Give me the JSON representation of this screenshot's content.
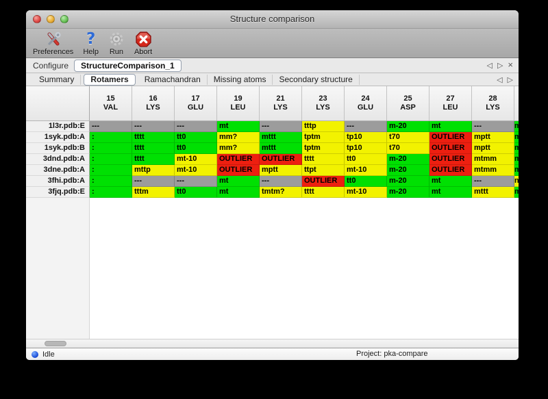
{
  "window": {
    "title": "Structure comparison"
  },
  "toolbar": {
    "buttons": [
      {
        "label": "Preferences",
        "icon": "tools-icon"
      },
      {
        "label": "Help",
        "icon": "question-icon"
      },
      {
        "label": "Run",
        "icon": "gear-icon"
      },
      {
        "label": "Abort",
        "icon": "abort-icon"
      }
    ]
  },
  "configure_bar": {
    "label": "Configure",
    "value": "StructureComparison_1",
    "nav": {
      "prev": "◁",
      "next": "▷",
      "close": "×"
    }
  },
  "tab_bar": {
    "tabs": [
      {
        "label": "Summary",
        "active": false
      },
      {
        "label": "Rotamers",
        "active": true
      },
      {
        "label": "Ramachandran",
        "active": false
      },
      {
        "label": "Missing atoms",
        "active": false
      },
      {
        "label": "Secondary structure",
        "active": false
      }
    ],
    "nav": {
      "prev": "◁",
      "next": "▷"
    }
  },
  "colors": {
    "ok": "#00e002",
    "warn": "#f2f200",
    "outlier": "#ed1f10",
    "missing": "#9c9c9c"
  },
  "table": {
    "columns": [
      {
        "num": "15",
        "res": "VAL"
      },
      {
        "num": "16",
        "res": "LYS"
      },
      {
        "num": "17",
        "res": "GLU"
      },
      {
        "num": "19",
        "res": "LEU"
      },
      {
        "num": "21",
        "res": "LYS"
      },
      {
        "num": "23",
        "res": "LYS"
      },
      {
        "num": "24",
        "res": "GLU"
      },
      {
        "num": "25",
        "res": "ASP"
      },
      {
        "num": "27",
        "res": "LEU"
      },
      {
        "num": "28",
        "res": "LYS"
      }
    ],
    "rows": [
      {
        "label": "1l3r.pdb:E",
        "cells": [
          {
            "text": "---",
            "status": "missing"
          },
          {
            "text": "---",
            "status": "missing"
          },
          {
            "text": "---",
            "status": "missing"
          },
          {
            "text": "mt",
            "status": "ok"
          },
          {
            "text": "---",
            "status": "missing"
          },
          {
            "text": "tttp",
            "status": "warn"
          },
          {
            "text": "---",
            "status": "missing"
          },
          {
            "text": "m-20",
            "status": "ok"
          },
          {
            "text": "mt",
            "status": "ok"
          },
          {
            "text": "---",
            "status": "missing"
          }
        ],
        "partial": {
          "text": "m",
          "status": "ok"
        }
      },
      {
        "label": "1syk.pdb:A",
        "cells": [
          {
            "text": ":",
            "status": "ok"
          },
          {
            "text": "tttt",
            "status": "ok"
          },
          {
            "text": "tt0",
            "status": "ok"
          },
          {
            "text": "mm?",
            "status": "warn"
          },
          {
            "text": "mttt",
            "status": "ok"
          },
          {
            "text": "tptm",
            "status": "warn"
          },
          {
            "text": "tp10",
            "status": "warn"
          },
          {
            "text": "t70",
            "status": "warn"
          },
          {
            "text": "OUTLIER",
            "status": "outlier"
          },
          {
            "text": "mptt",
            "status": "warn"
          }
        ],
        "partial": {
          "text": "m",
          "status": "ok"
        }
      },
      {
        "label": "1syk.pdb:B",
        "cells": [
          {
            "text": ":",
            "status": "ok"
          },
          {
            "text": "tttt",
            "status": "ok"
          },
          {
            "text": "tt0",
            "status": "ok"
          },
          {
            "text": "mm?",
            "status": "warn"
          },
          {
            "text": "mttt",
            "status": "ok"
          },
          {
            "text": "tptm",
            "status": "warn"
          },
          {
            "text": "tp10",
            "status": "warn"
          },
          {
            "text": "t70",
            "status": "warn"
          },
          {
            "text": "OUTLIER",
            "status": "outlier"
          },
          {
            "text": "mptt",
            "status": "warn"
          }
        ],
        "partial": {
          "text": "m",
          "status": "ok"
        }
      },
      {
        "label": "3dnd.pdb:A",
        "cells": [
          {
            "text": ":",
            "status": "ok"
          },
          {
            "text": "tttt",
            "status": "ok"
          },
          {
            "text": "mt-10",
            "status": "warn"
          },
          {
            "text": "OUTLIER",
            "status": "outlier"
          },
          {
            "text": "OUTLIER",
            "status": "outlier"
          },
          {
            "text": "tttt",
            "status": "warn"
          },
          {
            "text": "tt0",
            "status": "warn"
          },
          {
            "text": "m-20",
            "status": "ok"
          },
          {
            "text": "OUTLIER",
            "status": "outlier"
          },
          {
            "text": "mtmm",
            "status": "warn"
          }
        ],
        "partial": {
          "text": "m",
          "status": "ok"
        }
      },
      {
        "label": "3dne.pdb:A",
        "cells": [
          {
            "text": ":",
            "status": "ok"
          },
          {
            "text": "mttp",
            "status": "warn"
          },
          {
            "text": "mt-10",
            "status": "warn"
          },
          {
            "text": "OUTLIER",
            "status": "outlier"
          },
          {
            "text": "mptt",
            "status": "warn"
          },
          {
            "text": "ttpt",
            "status": "warn"
          },
          {
            "text": "mt-10",
            "status": "warn"
          },
          {
            "text": "m-20",
            "status": "ok"
          },
          {
            "text": "OUTLIER",
            "status": "outlier"
          },
          {
            "text": "mtmm",
            "status": "warn"
          }
        ],
        "partial": {
          "text": "m",
          "status": "ok"
        }
      },
      {
        "label": "3fhi.pdb:A",
        "cells": [
          {
            "text": ":",
            "status": "ok"
          },
          {
            "text": "---",
            "status": "missing"
          },
          {
            "text": "---",
            "status": "missing"
          },
          {
            "text": "mt",
            "status": "ok"
          },
          {
            "text": "---",
            "status": "missing"
          },
          {
            "text": "OUTLIER",
            "status": "outlier"
          },
          {
            "text": "tt0",
            "status": "ok"
          },
          {
            "text": "m-20",
            "status": "ok"
          },
          {
            "text": "mt",
            "status": "ok"
          },
          {
            "text": "---",
            "status": "missing"
          }
        ],
        "partial": {
          "text": "n",
          "status": "warn"
        }
      },
      {
        "label": "3fjq.pdb:E",
        "cells": [
          {
            "text": ":",
            "status": "ok"
          },
          {
            "text": "tttm",
            "status": "warn"
          },
          {
            "text": "tt0",
            "status": "ok"
          },
          {
            "text": "mt",
            "status": "ok"
          },
          {
            "text": "tmtm?",
            "status": "warn"
          },
          {
            "text": "tttt",
            "status": "warn"
          },
          {
            "text": "mt-10",
            "status": "warn"
          },
          {
            "text": "m-20",
            "status": "ok"
          },
          {
            "text": "mt",
            "status": "ok"
          },
          {
            "text": "mttt",
            "status": "warn"
          }
        ],
        "partial": {
          "text": "m",
          "status": "ok"
        }
      }
    ]
  },
  "status_bar": {
    "state": "Idle",
    "project": "Project: pka-compare"
  }
}
